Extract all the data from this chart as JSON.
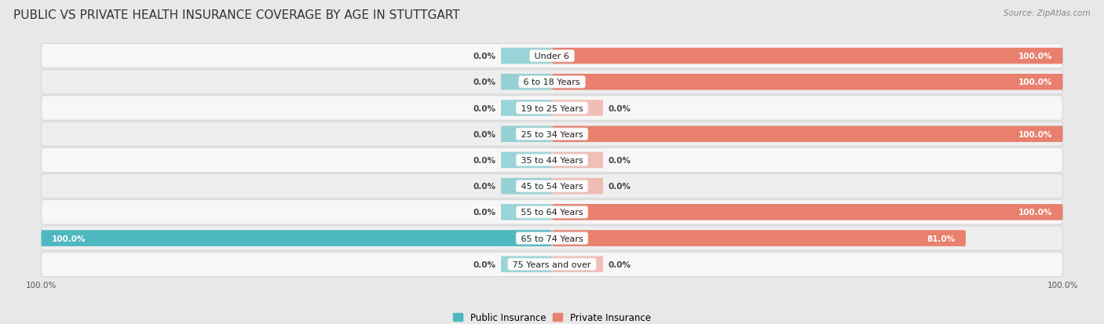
{
  "title": "PUBLIC VS PRIVATE HEALTH INSURANCE COVERAGE BY AGE IN STUTTGART",
  "source": "Source: ZipAtlas.com",
  "categories": [
    "Under 6",
    "6 to 18 Years",
    "19 to 25 Years",
    "25 to 34 Years",
    "35 to 44 Years",
    "45 to 54 Years",
    "55 to 64 Years",
    "65 to 74 Years",
    "75 Years and over"
  ],
  "public": [
    0.0,
    0.0,
    0.0,
    0.0,
    0.0,
    0.0,
    0.0,
    100.0,
    0.0
  ],
  "private": [
    100.0,
    100.0,
    0.0,
    100.0,
    0.0,
    0.0,
    100.0,
    81.0,
    0.0
  ],
  "public_color": "#4db8c0",
  "private_color": "#e8806d",
  "private_color_light": "#f0b0a5",
  "public_label": "Public Insurance",
  "private_label": "Private Insurance",
  "bg_color": "#e8e8e8",
  "row_color_light": "#f7f7f7",
  "row_color_dark": "#eeeeee",
  "xlim_abs": 100,
  "bar_height": 0.62,
  "stub_size": 10,
  "title_fontsize": 11,
  "label_fontsize": 8,
  "value_fontsize": 7.5,
  "tick_fontsize": 7.5,
  "source_fontsize": 7.5
}
